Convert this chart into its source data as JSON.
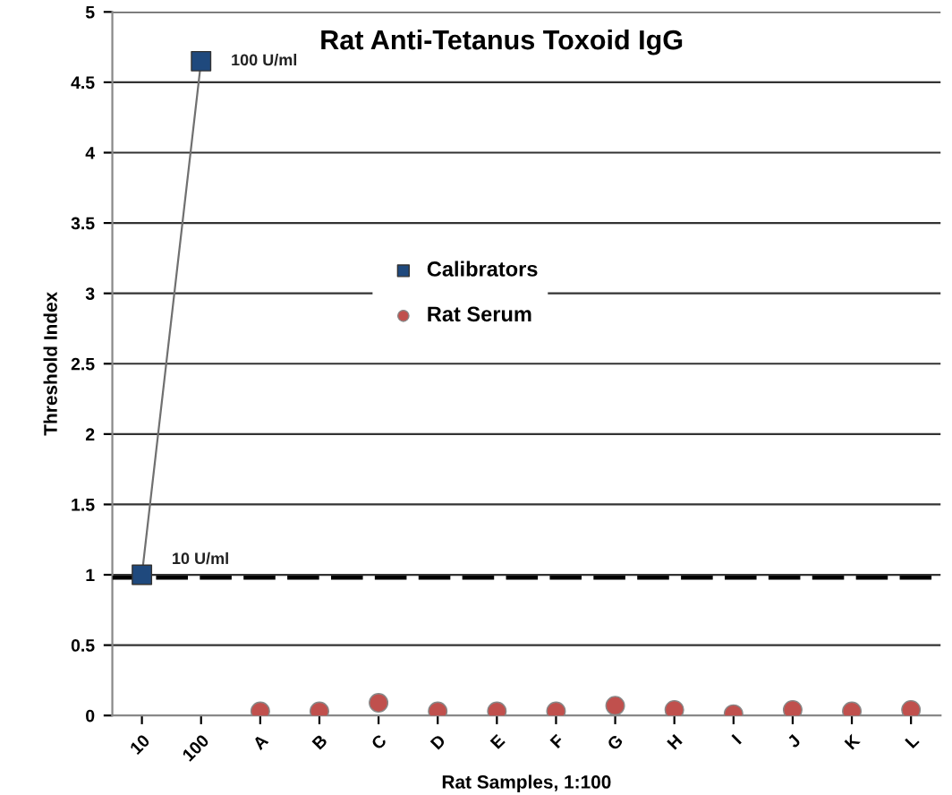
{
  "chart_data": {
    "type": "line",
    "title": "Rat Anti-Tetanus Toxoid IgG",
    "xlabel": "Rat Samples, 1:100",
    "ylabel": "Threshold Index",
    "categories": [
      "10",
      "100",
      "A",
      "B",
      "C",
      "D",
      "E",
      "F",
      "G",
      "H",
      "I",
      "J",
      "K",
      "L"
    ],
    "series": [
      {
        "name": "Calibrators",
        "marker": "square",
        "color": "#1f497d",
        "values": [
          1.0,
          4.65,
          null,
          null,
          null,
          null,
          null,
          null,
          null,
          null,
          null,
          null,
          null,
          null
        ]
      },
      {
        "name": "Rat Serum",
        "type": "scatter",
        "marker": "circle",
        "color": "#c0504d",
        "values": [
          null,
          null,
          0.03,
          0.03,
          0.09,
          0.03,
          0.03,
          0.03,
          0.07,
          0.04,
          0.01,
          0.04,
          0.03,
          0.04
        ]
      }
    ],
    "annotations": [
      {
        "text": "10 U/ml",
        "x": "10",
        "y": 1.0
      },
      {
        "text": "100 U/ml",
        "x": "100",
        "y": 4.65
      }
    ],
    "ref_lines": [
      {
        "axis": "y",
        "value": 0.98,
        "color": "#000000",
        "line_style": "dashed"
      }
    ],
    "ylim": [
      0,
      5
    ],
    "yticks": [
      0,
      0.5,
      1,
      1.5,
      2,
      2.5,
      3,
      3.5,
      4,
      4.5,
      5
    ],
    "grid": "y",
    "legend": "center"
  }
}
